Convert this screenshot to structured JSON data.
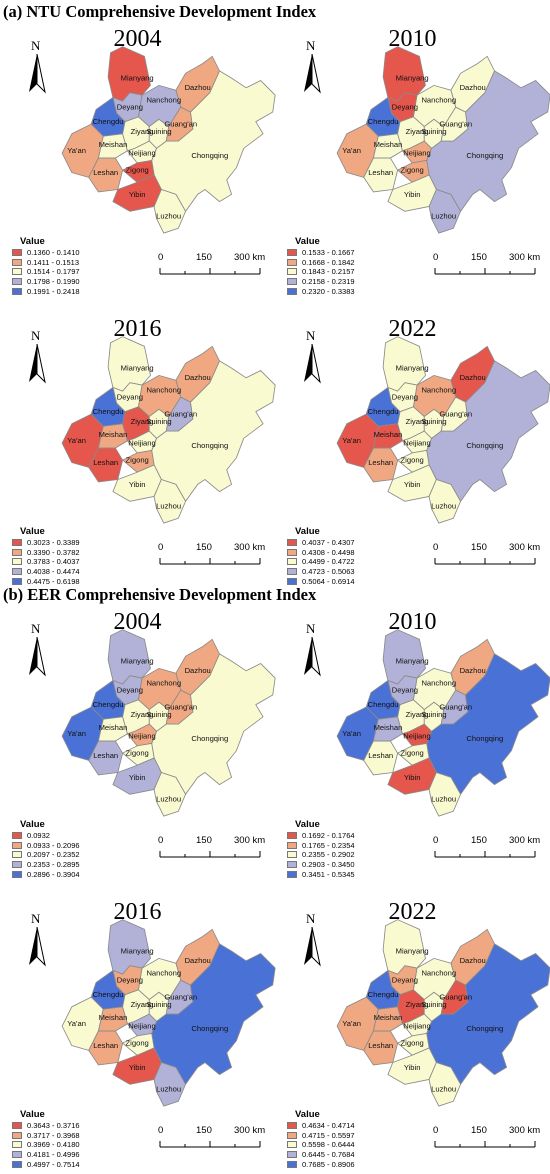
{
  "colors": {
    "c1": "#e5564c",
    "c2": "#f0a882",
    "c3": "#fafad0",
    "c4": "#b2b2d8",
    "c5": "#4a71d6"
  },
  "icon": "north-arrow-icon",
  "north_label": "N",
  "legend_title": "Value",
  "scale": {
    "zero": "0",
    "mid": "150",
    "end": "300 km"
  },
  "city_names": {
    "mianyang": "Mianyang",
    "deyang": "Deyang",
    "chengdu": "Chengdu",
    "yaan": "Ya'an",
    "meishan": "Meishan",
    "leshan": "Leshan",
    "ziyang": "Ziyang",
    "neijiang": "Neijiang",
    "zigong": "Zigong",
    "yibin": "Yibin",
    "luzhou": "Luzhou",
    "suining": "Suining",
    "nanchong": "Nanchong",
    "guangan": "Guang'an",
    "dazhou": "Dazhou",
    "chongqing": "Chongqing"
  },
  "sections": [
    {
      "title": "(a) NTU Comprehensive Development Index",
      "panels": [
        {
          "year": "2004",
          "legend": [
            "0.1360 - 0.1410",
            "0.1411 - 0.1513",
            "0.1514 - 0.1797",
            "0.1798 - 0.1990",
            "0.1991 - 0.2418"
          ],
          "classes": {
            "mianyang": 1,
            "deyang": 4,
            "chengdu": 5,
            "yaan": 2,
            "meishan": 3,
            "leshan": 2,
            "ziyang": 3,
            "neijiang": 3,
            "zigong": 1,
            "yibin": 1,
            "luzhou": 3,
            "suining": 3,
            "nanchong": 4,
            "guangan": 2,
            "dazhou": 2,
            "chongqing": 3
          }
        },
        {
          "year": "2010",
          "legend": [
            "0.1533 - 0.1667",
            "0.1668 - 0.1842",
            "0.1843 - 0.2157",
            "0.2158 - 0.2319",
            "0.2320 - 0.3383"
          ],
          "classes": {
            "mianyang": 1,
            "deyang": 1,
            "chengdu": 5,
            "yaan": 2,
            "meishan": 3,
            "leshan": 3,
            "ziyang": 3,
            "neijiang": 2,
            "zigong": 2,
            "yibin": 3,
            "luzhou": 4,
            "suining": 3,
            "nanchong": 3,
            "guangan": 3,
            "dazhou": 3,
            "chongqing": 4
          }
        },
        {
          "year": "2016",
          "legend": [
            "0.3023 - 0.3389",
            "0.3390 - 0.3782",
            "0.3783 - 0.4037",
            "0.4038 - 0.4474",
            "0.4475 - 0.6198"
          ],
          "classes": {
            "mianyang": 3,
            "deyang": 3,
            "chengdu": 5,
            "yaan": 1,
            "meishan": 2,
            "leshan": 1,
            "ziyang": 1,
            "neijiang": 3,
            "zigong": 2,
            "yibin": 3,
            "luzhou": 3,
            "suining": 3,
            "nanchong": 2,
            "guangan": 4,
            "dazhou": 2,
            "chongqing": 3
          }
        },
        {
          "year": "2022",
          "legend": [
            "0.4037 - 0.4307",
            "0.4308 - 0.4498",
            "0.4499 - 0.4722",
            "0.4723 - 0.5063",
            "0.5064 - 0.6914"
          ],
          "classes": {
            "mianyang": 3,
            "deyang": 3,
            "chengdu": 5,
            "yaan": 1,
            "meishan": 1,
            "leshan": 2,
            "ziyang": 3,
            "neijiang": 3,
            "zigong": 3,
            "yibin": 3,
            "luzhou": 3,
            "suining": 3,
            "nanchong": 2,
            "guangan": 3,
            "dazhou": 1,
            "chongqing": 4
          }
        }
      ]
    },
    {
      "title": "(b) EER Comprehensive Development Index",
      "panels": [
        {
          "year": "2004",
          "legend": [
            "0.0932",
            "0.0933 - 0.2096",
            "0.2097 - 0.2352",
            "0.2353 - 0.2895",
            "0.2896 - 0.3904"
          ],
          "classes": {
            "mianyang": 4,
            "deyang": 4,
            "chengdu": 5,
            "yaan": 5,
            "meishan": 3,
            "leshan": 4,
            "ziyang": 3,
            "neijiang": 2,
            "zigong": 3,
            "yibin": 4,
            "luzhou": 3,
            "suining": 3,
            "nanchong": 2,
            "guangan": 2,
            "dazhou": 2,
            "chongqing": 3
          }
        },
        {
          "year": "2010",
          "legend": [
            "0.1692 - 0.1764",
            "0.1765 - 0.2354",
            "0.2355 - 0.2902",
            "0.2903 - 0.3450",
            "0.3451 - 0.5345"
          ],
          "classes": {
            "mianyang": 4,
            "deyang": 4,
            "chengdu": 5,
            "yaan": 5,
            "meishan": 4,
            "leshan": 3,
            "ziyang": 3,
            "neijiang": 1,
            "zigong": 3,
            "yibin": 1,
            "luzhou": 3,
            "suining": 3,
            "nanchong": 3,
            "guangan": 4,
            "dazhou": 2,
            "chongqing": 5
          }
        },
        {
          "year": "2016",
          "legend": [
            "0.3643 - 0.3716",
            "0.3717 - 0.3968",
            "0.3969 - 0.4180",
            "0.4181 - 0.4996",
            "0.4997 - 0.7514"
          ],
          "classes": {
            "mianyang": 4,
            "deyang": 2,
            "chengdu": 5,
            "yaan": 3,
            "meishan": 2,
            "leshan": 2,
            "ziyang": 3,
            "neijiang": 4,
            "zigong": 3,
            "yibin": 1,
            "luzhou": 4,
            "suining": 3,
            "nanchong": 3,
            "guangan": 4,
            "dazhou": 2,
            "chongqing": 5
          }
        },
        {
          "year": "2022",
          "legend": [
            "0.4634 - 0.4714",
            "0.4715 - 0.5597",
            "0.5598 - 0.6444",
            "0.6445 - 0.7684",
            "0.7685 - 0.8906"
          ],
          "classes": {
            "mianyang": 3,
            "deyang": 2,
            "chengdu": 5,
            "yaan": 2,
            "meishan": 2,
            "leshan": 2,
            "ziyang": 1,
            "neijiang": 3,
            "zigong": 3,
            "yibin": 3,
            "luzhou": 3,
            "suining": 3,
            "nanchong": 3,
            "guangan": 1,
            "dazhou": 2,
            "chongqing": 5
          }
        }
      ]
    }
  ]
}
